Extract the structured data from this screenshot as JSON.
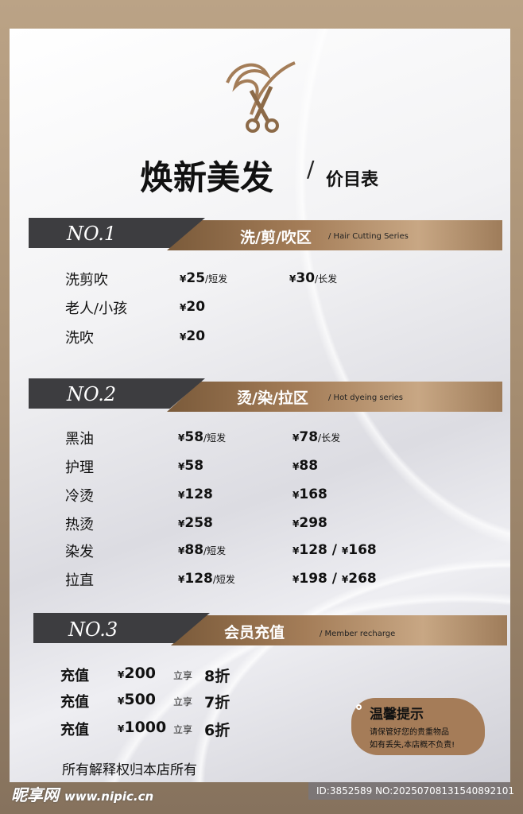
{
  "header": {
    "title": "焕新美发",
    "slash": "/",
    "subtitle": "价目表",
    "logo": "scissors-hair-logo"
  },
  "sections": [
    {
      "no": "NO.1",
      "title": "洗/剪/吹区",
      "en": "/ Hair Cutting Series",
      "items": [
        {
          "name": "洗剪吹",
          "p1": "25",
          "p1note": "/短发",
          "p2": "30",
          "p2note": "/长发"
        },
        {
          "name": "老人/小孩",
          "p1": "20"
        },
        {
          "name": "洗吹",
          "p1": "20"
        }
      ]
    },
    {
      "no": "NO.2",
      "title": "烫/染/拉区",
      "en": "/ Hot dyeing series",
      "items": [
        {
          "name": "黑油",
          "p1": "58",
          "p1note": "/短发",
          "p2": "78",
          "p2note": "/长发"
        },
        {
          "name": "护理",
          "p1": "58",
          "p2": "88"
        },
        {
          "name": "冷烫",
          "p1": "128",
          "p2": "168"
        },
        {
          "name": "热烫",
          "p1": "258",
          "p2": "298"
        },
        {
          "name": "染发",
          "p1": "88",
          "p1note": "/短发",
          "p2": "128",
          "p3": "168"
        },
        {
          "name": "拉直",
          "p1": "128",
          "p1note": "/短发",
          "p2": "198",
          "p3": "268"
        }
      ]
    },
    {
      "no": "NO.3",
      "title": "会员充值",
      "en": "/ Member recharge",
      "items": [
        {
          "name": "充值",
          "amount": "200",
          "label": "立享",
          "discount": "8折"
        },
        {
          "name": "充值",
          "amount": "500",
          "label": "立享",
          "discount": "7折"
        },
        {
          "name": "充值",
          "amount": "1000",
          "label": "立享",
          "discount": "6折"
        }
      ]
    }
  ],
  "currency": "¥",
  "tip": {
    "title": "温馨提示",
    "line1": "请保管好您的贵重物品",
    "line2": "如有丢失,本店概不负责!"
  },
  "footer": "所有解释权归本店所有",
  "watermark": {
    "brand": "昵享网",
    "url": "www.nipic.cn",
    "id": "ID:3852589 NO:20250708131540892101"
  },
  "colors": {
    "brown": "#a47d58",
    "dark": "#3d3d40"
  }
}
